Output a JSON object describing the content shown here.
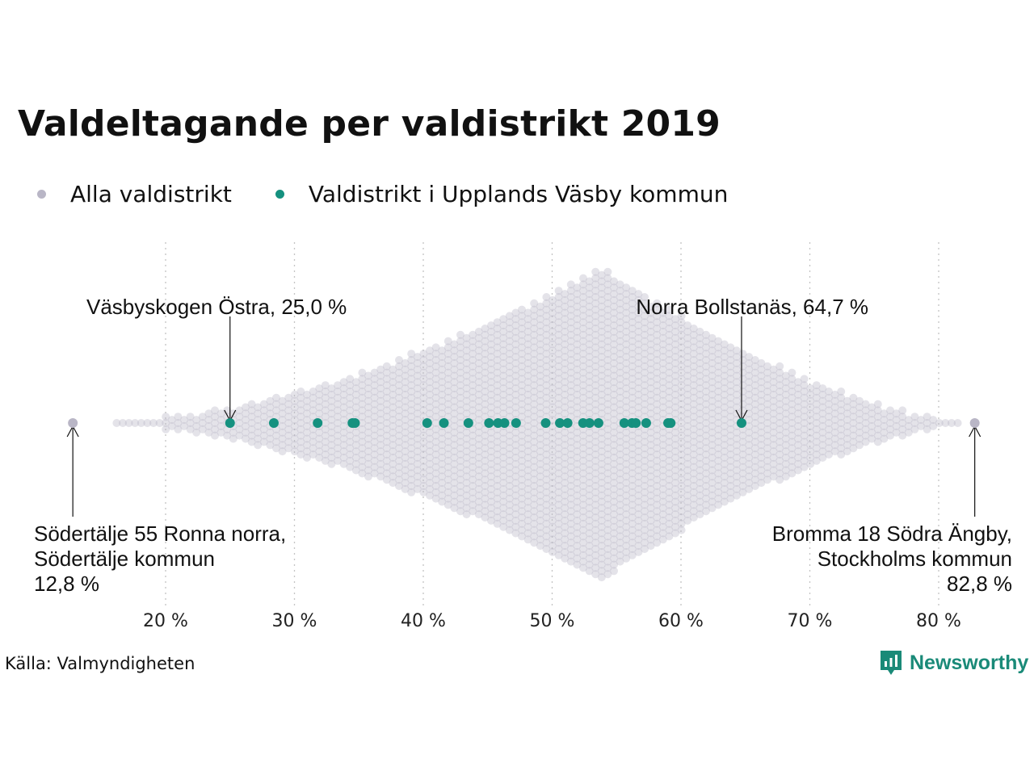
{
  "title": "Valdeltagande per valdistrikt 2019",
  "legend": [
    {
      "label": "Alla valdistrikt",
      "color": "#b9b6c6"
    },
    {
      "label": "Valdistrikt i Upplands Väsby kommun",
      "color": "#15917f"
    }
  ],
  "source": "Källa: Valmyndigheten",
  "brand": "Newsworthy",
  "chart_data": {
    "type": "scatter",
    "subtype": "beeswarm",
    "title": "Valdeltagande per valdistrikt 2019",
    "xlim": [
      12,
      84
    ],
    "ticks": [
      {
        "value": 20,
        "label": "20 %"
      },
      {
        "value": 30,
        "label": "30 %"
      },
      {
        "value": 40,
        "label": "40 %"
      },
      {
        "value": 50,
        "label": "50 %"
      },
      {
        "value": 60,
        "label": "60 %"
      },
      {
        "value": 70,
        "label": "70 %"
      },
      {
        "value": 80,
        "label": "80 %"
      }
    ],
    "grid": "vertical dotted",
    "legend_position": "top-left",
    "all_districts_peak": 53.8,
    "series": [
      {
        "name": "Valdistrikt i Upplands Väsby kommun",
        "color": "#15917f",
        "values": [
          25.0,
          28.4,
          31.8,
          34.5,
          34.7,
          40.3,
          41.6,
          43.5,
          45.1,
          45.8,
          46.3,
          47.2,
          49.5,
          50.6,
          51.2,
          52.4,
          52.9,
          53.6,
          55.6,
          56.2,
          56.5,
          57.3,
          59.0,
          59.2,
          64.7
        ]
      }
    ],
    "extremes": [
      {
        "value": 12.8,
        "color": "#b9b6c6"
      },
      {
        "value": 82.8,
        "color": "#b9b6c6"
      }
    ],
    "annotations": [
      {
        "value": 25.0,
        "lines": [
          "Väsbyskogen Östra, 25,0 %"
        ],
        "position": "above",
        "anchor": "start"
      },
      {
        "value": 64.7,
        "lines": [
          "Norra Bollstanäs, 64,7 %"
        ],
        "position": "above",
        "anchor": "end"
      },
      {
        "value": 12.8,
        "lines": [
          "Södertälje 55 Ronna norra,",
          "Södertälje kommun",
          "12,8 %"
        ],
        "position": "below",
        "anchor": "start"
      },
      {
        "value": 82.8,
        "lines": [
          "Bromma 18 Södra Ängby,",
          "Stockholms kommun",
          "82,8 %"
        ],
        "position": "below",
        "anchor": "end"
      }
    ]
  }
}
